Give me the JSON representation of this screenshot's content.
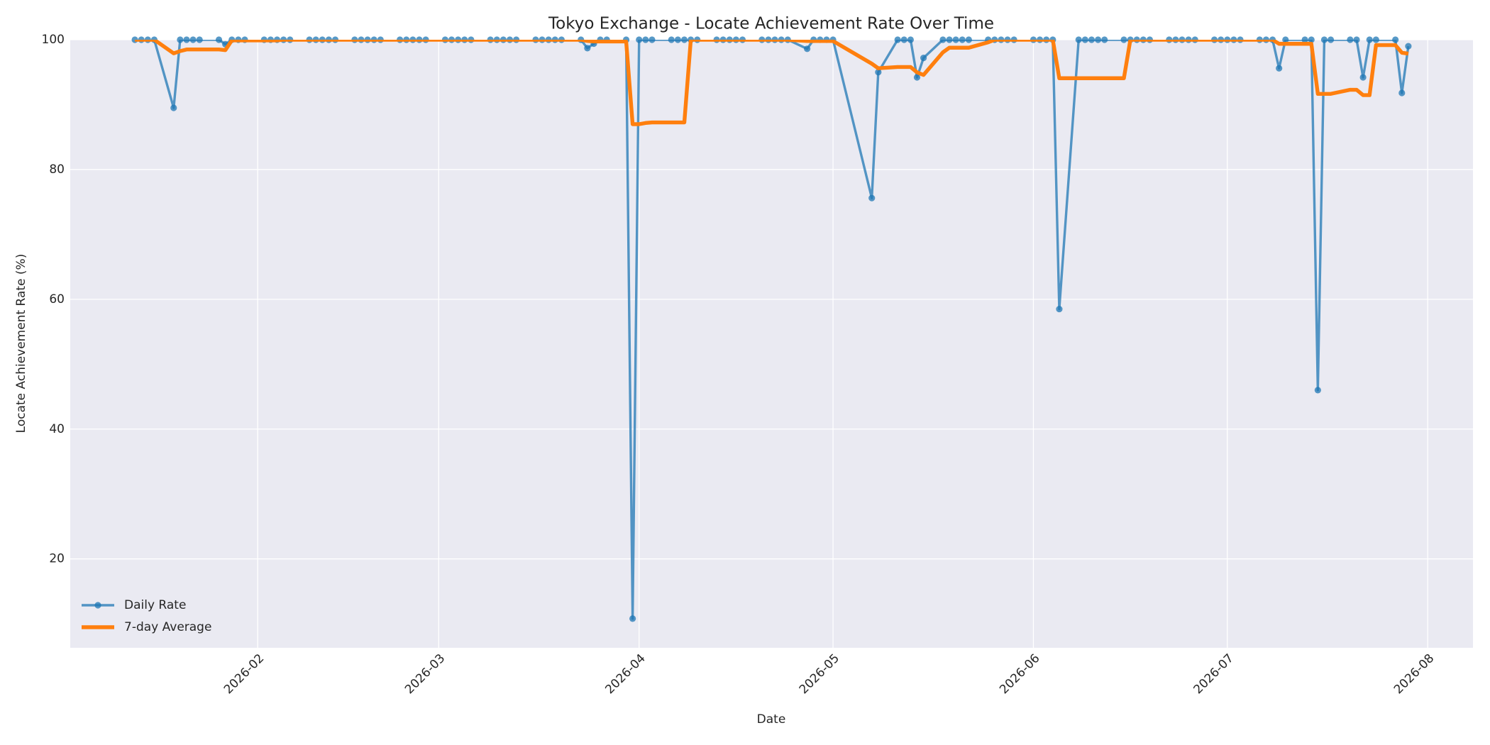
{
  "chart_data": {
    "type": "line",
    "title": "Tokyo Exchange - Locate Achievement Rate Over Time",
    "x_label": "Date",
    "y_label": "Locate Achievement Rate (%)",
    "x": [
      "2026-01-13",
      "2026-01-14",
      "2026-01-15",
      "2026-01-16",
      "2026-01-19",
      "2026-01-20",
      "2026-01-21",
      "2026-01-22",
      "2026-01-23",
      "2026-01-26",
      "2026-01-27",
      "2026-01-28",
      "2026-01-29",
      "2026-01-30",
      "2026-02-02",
      "2026-02-03",
      "2026-02-04",
      "2026-02-05",
      "2026-02-06",
      "2026-02-09",
      "2026-02-10",
      "2026-02-11",
      "2026-02-12",
      "2026-02-13",
      "2026-02-16",
      "2026-02-17",
      "2026-02-18",
      "2026-02-19",
      "2026-02-20",
      "2026-02-23",
      "2026-02-24",
      "2026-02-25",
      "2026-02-26",
      "2026-02-27",
      "2026-03-02",
      "2026-03-03",
      "2026-03-04",
      "2026-03-05",
      "2026-03-06",
      "2026-03-09",
      "2026-03-10",
      "2026-03-11",
      "2026-03-12",
      "2026-03-13",
      "2026-03-16",
      "2026-03-17",
      "2026-03-18",
      "2026-03-19",
      "2026-03-20",
      "2026-03-23",
      "2026-03-24",
      "2026-03-25",
      "2026-03-26",
      "2026-03-27",
      "2026-03-30",
      "2026-03-31",
      "2026-04-01",
      "2026-04-02",
      "2026-04-03",
      "2026-04-06",
      "2026-04-07",
      "2026-04-08",
      "2026-04-09",
      "2026-04-10",
      "2026-04-13",
      "2026-04-14",
      "2026-04-15",
      "2026-04-16",
      "2026-04-17",
      "2026-04-20",
      "2026-04-21",
      "2026-04-22",
      "2026-04-23",
      "2026-04-24",
      "2026-04-27",
      "2026-04-28",
      "2026-04-29",
      "2026-04-30",
      "2026-05-01",
      "2026-05-07",
      "2026-05-08",
      "2026-05-11",
      "2026-05-12",
      "2026-05-13",
      "2026-05-14",
      "2026-05-15",
      "2026-05-18",
      "2026-05-19",
      "2026-05-20",
      "2026-05-21",
      "2026-05-22",
      "2026-05-25",
      "2026-05-26",
      "2026-05-27",
      "2026-05-28",
      "2026-05-29",
      "2026-06-01",
      "2026-06-02",
      "2026-06-03",
      "2026-06-04",
      "2026-06-05",
      "2026-06-08",
      "2026-06-09",
      "2026-06-10",
      "2026-06-11",
      "2026-06-12",
      "2026-06-15",
      "2026-06-16",
      "2026-06-17",
      "2026-06-18",
      "2026-06-19",
      "2026-06-22",
      "2026-06-23",
      "2026-06-24",
      "2026-06-25",
      "2026-06-26",
      "2026-06-29",
      "2026-06-30",
      "2026-07-01",
      "2026-07-02",
      "2026-07-03",
      "2026-07-06",
      "2026-07-07",
      "2026-07-08",
      "2026-07-09",
      "2026-07-10",
      "2026-07-13",
      "2026-07-14",
      "2026-07-15",
      "2026-07-16",
      "2026-07-17",
      "2026-07-20",
      "2026-07-21",
      "2026-07-22",
      "2026-07-23",
      "2026-07-24",
      "2026-07-27",
      "2026-07-28",
      "2026-07-29"
    ],
    "series": [
      {
        "name": "Daily Rate",
        "color": "#1f77b4",
        "marker": true,
        "values": [
          100,
          100,
          100,
          100,
          89.5,
          100,
          100,
          100,
          100,
          100,
          99.3,
          100,
          100,
          100,
          100,
          100,
          100,
          100,
          100,
          100,
          100,
          100,
          100,
          100,
          100,
          100,
          100,
          100,
          100,
          100,
          100,
          100,
          100,
          100,
          100,
          100,
          100,
          100,
          100,
          100,
          100,
          100,
          100,
          100,
          100,
          100,
          100,
          100,
          100,
          100,
          98.7,
          99.4,
          100,
          100,
          100,
          10.8,
          100,
          100,
          100,
          100,
          100,
          100,
          100,
          100,
          100,
          100,
          100,
          100,
          100,
          100,
          100,
          100,
          100,
          100,
          98.6,
          100,
          100,
          100,
          100,
          75.6,
          95,
          100,
          100,
          100,
          94.2,
          97.2,
          100,
          100,
          100,
          100,
          100,
          100,
          100,
          100,
          100,
          100,
          100,
          100,
          100,
          100,
          58.5,
          100,
          100,
          100,
          100,
          100,
          100,
          100,
          100,
          100,
          100,
          100,
          100,
          100,
          100,
          100,
          100,
          100,
          100,
          100,
          100,
          100,
          100,
          100,
          95.6,
          100,
          100,
          100,
          46,
          100,
          100,
          100,
          100,
          94.2,
          100,
          100,
          100,
          91.8,
          99
        ]
      },
      {
        "name": "7-day Average",
        "color": "#ff7f0e",
        "marker": false,
        "values": [
          100,
          100,
          100,
          100,
          97.9,
          98.25,
          98.5,
          98.5,
          98.5,
          98.5,
          98.4,
          99.9,
          99.9,
          99.9,
          99.9,
          99.9,
          99.9,
          100,
          100,
          100,
          100,
          100,
          100,
          100,
          100,
          100,
          100,
          100,
          100,
          100,
          100,
          100,
          100,
          100,
          100,
          100,
          100,
          100,
          100,
          100,
          100,
          100,
          100,
          100,
          100,
          100,
          100,
          100,
          100,
          100,
          99.81,
          99.73,
          99.73,
          99.73,
          99.73,
          86.99,
          86.99,
          87.17,
          87.26,
          87.26,
          87.26,
          87.26,
          100,
          100,
          100,
          100,
          100,
          100,
          100,
          100,
          100,
          100,
          100,
          100,
          99.8,
          99.8,
          99.8,
          99.8,
          99.8,
          96.31,
          95.6,
          95.8,
          95.8,
          95.8,
          94.97,
          94.57,
          98.06,
          98.77,
          98.77,
          98.77,
          98.77,
          99.6,
          100,
          100,
          100,
          100,
          100,
          100,
          100,
          100,
          94.07,
          94.07,
          94.07,
          94.07,
          94.07,
          94.07,
          94.07,
          100,
          100,
          100,
          100,
          100,
          100,
          100,
          100,
          100,
          100,
          100,
          100,
          100,
          100,
          100,
          100,
          100,
          99.37,
          99.37,
          99.37,
          99.37,
          91.66,
          91.66,
          91.66,
          92.29,
          92.29,
          91.46,
          91.46,
          99.17,
          99.17,
          98.0,
          97.86
        ]
      }
    ],
    "xlim": [
      "2026-01-03",
      "2026-08-08"
    ],
    "xticks": [
      "2026-02",
      "2026-03",
      "2026-04",
      "2026-05",
      "2026-06",
      "2026-07",
      "2026-08"
    ],
    "ylim": [
      6.3,
      100
    ],
    "yticks": [
      20,
      40,
      60,
      80,
      100
    ],
    "grid": true,
    "legend": "lower left"
  }
}
